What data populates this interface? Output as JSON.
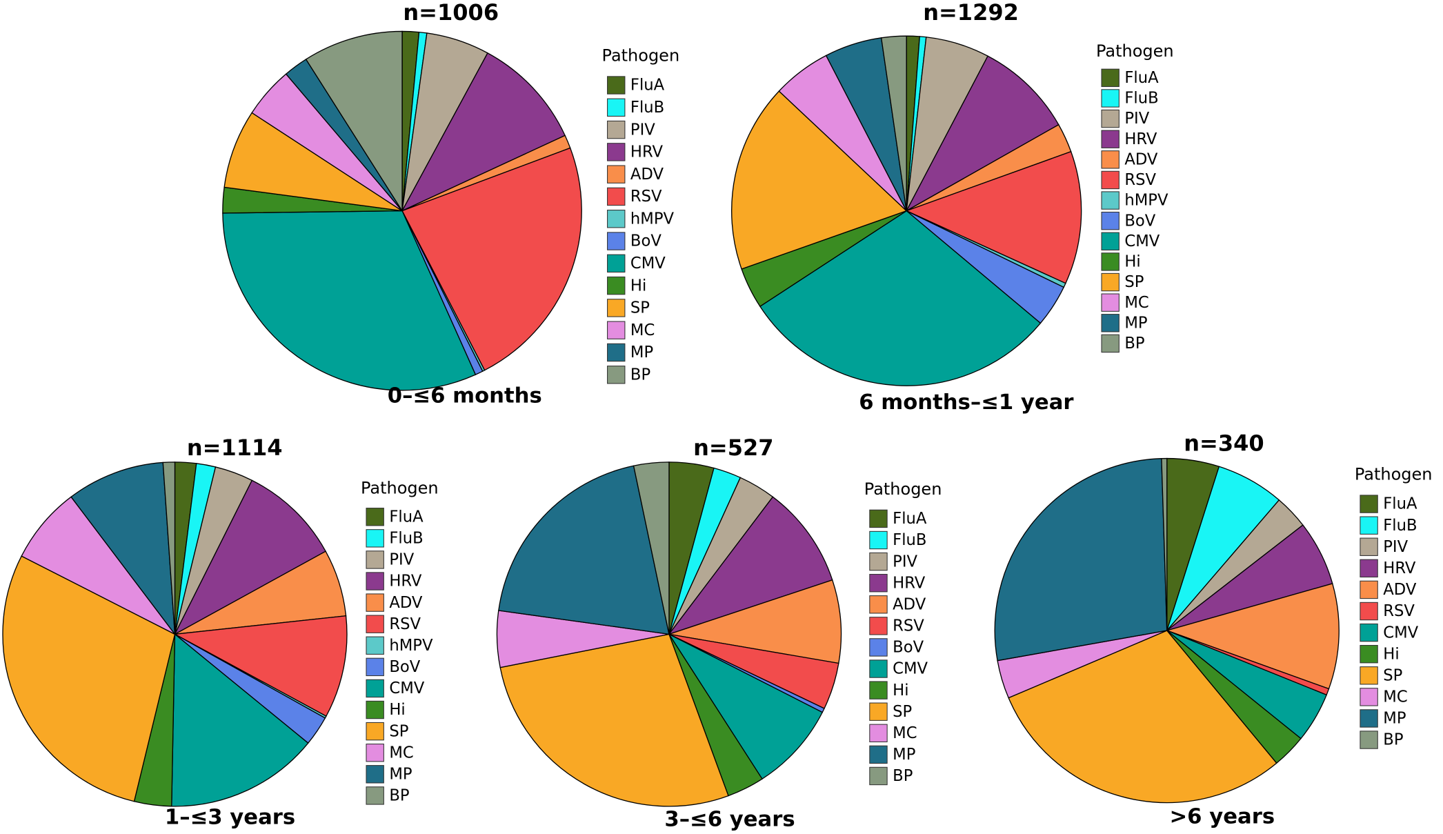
{
  "chart_data": [
    {
      "type": "pie",
      "title": "n=1006",
      "subtitle": "0–≤6 months",
      "legend_title": "Pathogen",
      "categories": [
        "FluA",
        "FluB",
        "PIV",
        "HRV",
        "ADV",
        "RSV",
        "hMPV",
        "BoV",
        "CMV",
        "Hi",
        "SP",
        "MC",
        "MP",
        "BP"
      ],
      "values": [
        1.5,
        0.7,
        5.7,
        10.2,
        1.2,
        23.1,
        0.2,
        0.7,
        31.5,
        2.3,
        7.1,
        4.6,
        2.2,
        9.0
      ],
      "colors": [
        "#4a6a1a",
        "#19f5f5",
        "#b4a894",
        "#8b3a8e",
        "#f98e4a",
        "#f24c4c",
        "#5cc9c9",
        "#5b82e8",
        "#00a196",
        "#3a8c22",
        "#f9a825",
        "#e38de0",
        "#1f6e88",
        "#879a80"
      ]
    },
    {
      "type": "pie",
      "title": "n=1292",
      "subtitle": "6 months–≤1 year",
      "legend_title": "Pathogen",
      "categories": [
        "FluA",
        "FluB",
        "PIV",
        "HRV",
        "ADV",
        "RSV",
        "hMPV",
        "BoV",
        "CMV",
        "Hi",
        "SP",
        "MC",
        "MP",
        "BP"
      ],
      "values": [
        1.2,
        0.6,
        5.9,
        9.1,
        2.7,
        12.3,
        0.4,
        3.9,
        29.7,
        3.8,
        17.4,
        5.4,
        5.3,
        2.3
      ],
      "colors": [
        "#4a6a1a",
        "#19f5f5",
        "#b4a894",
        "#8b3a8e",
        "#f98e4a",
        "#f24c4c",
        "#5cc9c9",
        "#5b82e8",
        "#00a196",
        "#3a8c22",
        "#f9a825",
        "#e38de0",
        "#1f6e88",
        "#879a80"
      ]
    },
    {
      "type": "pie",
      "title": "n=1114",
      "subtitle": "1–≤3 years",
      "legend_title": "Pathogen",
      "categories": [
        "FluA",
        "FluB",
        "PIV",
        "HRV",
        "ADV",
        "RSV",
        "hMPV",
        "BoV",
        "CMV",
        "Hi",
        "SP",
        "MC",
        "MP",
        "BP"
      ],
      "values": [
        2.0,
        1.8,
        3.6,
        9.6,
        6.3,
        9.6,
        0.2,
        2.8,
        14.4,
        3.5,
        28.7,
        7.2,
        9.2,
        1.1
      ],
      "colors": [
        "#4a6a1a",
        "#19f5f5",
        "#b4a894",
        "#8b3a8e",
        "#f98e4a",
        "#f24c4c",
        "#5cc9c9",
        "#5b82e8",
        "#00a196",
        "#3a8c22",
        "#f9a825",
        "#e38de0",
        "#1f6e88",
        "#879a80"
      ]
    },
    {
      "type": "pie",
      "title": "n=527",
      "subtitle": "3–≤6 years",
      "legend_title": "Pathogen",
      "categories": [
        "FluA",
        "FluB",
        "PIV",
        "HRV",
        "ADV",
        "RSV",
        "BoV",
        "CMV",
        "Hi",
        "SP",
        "MC",
        "MP",
        "BP"
      ],
      "values": [
        4.2,
        2.6,
        3.5,
        9.6,
        7.8,
        4.4,
        0.4,
        8.4,
        3.5,
        27.5,
        5.3,
        19.5,
        3.3
      ],
      "colors": [
        "#4a6a1a",
        "#19f5f5",
        "#b4a894",
        "#8b3a8e",
        "#f98e4a",
        "#f24c4c",
        "#5b82e8",
        "#00a196",
        "#3a8c22",
        "#f9a825",
        "#e38de0",
        "#1f6e88",
        "#879a80"
      ]
    },
    {
      "type": "pie",
      "title": "n=340",
      "subtitle": ">6 years",
      "legend_title": "Pathogen",
      "categories": [
        "FluA",
        "FluB",
        "PIV",
        "HRV",
        "ADV",
        "RSV",
        "CMV",
        "Hi",
        "SP",
        "MC",
        "MP",
        "BP"
      ],
      "values": [
        4.9,
        6.4,
        3.2,
        6.1,
        9.9,
        0.6,
        4.7,
        3.2,
        29.6,
        3.6,
        27.3,
        0.5
      ],
      "colors": [
        "#4a6a1a",
        "#19f5f5",
        "#b4a894",
        "#8b3a8e",
        "#f98e4a",
        "#f24c4c",
        "#00a196",
        "#3a8c22",
        "#f9a825",
        "#e38de0",
        "#1f6e88",
        "#879a80"
      ]
    }
  ]
}
